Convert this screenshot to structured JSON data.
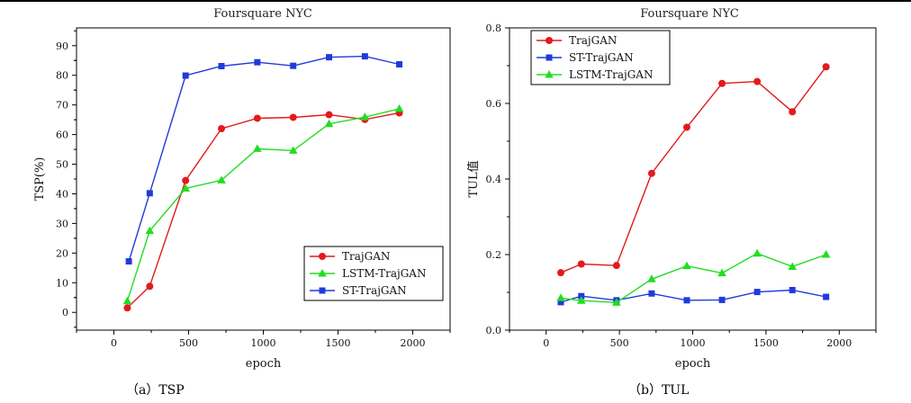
{
  "chart_data": [
    {
      "type": "line",
      "title": "Foursquare NYC",
      "caption": "（a）TSP",
      "xlabel": "epoch",
      "ylabel": "TSP(%)",
      "xlim": [
        -250,
        2250
      ],
      "ylim": [
        -6,
        96
      ],
      "xticks": [
        0,
        500,
        1000,
        1500,
        2000
      ],
      "yticks": [
        0,
        10,
        20,
        30,
        40,
        50,
        60,
        70,
        80,
        90
      ],
      "legend_position": "bottom-right",
      "series": [
        {
          "name": "TrajGAN",
          "color": "#e31a1c",
          "marker": "circle",
          "x": [
            90,
            240,
            480,
            720,
            960,
            1200,
            1440,
            1680,
            1910
          ],
          "y": [
            1.5,
            8.8,
            44.5,
            62,
            65.5,
            65.8,
            66.7,
            65.1,
            67.3
          ]
        },
        {
          "name": "LSTM-TrajGAN",
          "color": "#22dd22",
          "marker": "triangle",
          "x": [
            90,
            240,
            480,
            720,
            960,
            1200,
            1440,
            1680,
            1910
          ],
          "y": [
            3.8,
            27.5,
            41.8,
            44.6,
            55.2,
            54.6,
            63.6,
            65.9,
            68.7
          ]
        },
        {
          "name": "ST-TrajGAN",
          "color": "#1f3bdc",
          "marker": "square",
          "x": [
            100,
            240,
            480,
            720,
            960,
            1200,
            1440,
            1680,
            1910
          ],
          "y": [
            17.2,
            40.2,
            79.9,
            83.1,
            84.4,
            83.2,
            86.1,
            86.4,
            83.7
          ]
        }
      ]
    },
    {
      "type": "line",
      "title": "Foursquare NYC",
      "caption": "（b）TUL",
      "xlabel": "epoch",
      "ylabel": "TUL值",
      "xlim": [
        -250,
        2250
      ],
      "ylim": [
        0,
        0.8
      ],
      "xticks": [
        0,
        500,
        1000,
        1500,
        2000
      ],
      "yticks": [
        0.0,
        0.2,
        0.4,
        0.6,
        0.8
      ],
      "legend_position": "top-left",
      "series": [
        {
          "name": "TrajGAN",
          "color": "#e31a1c",
          "marker": "circle",
          "x": [
            100,
            240,
            480,
            720,
            960,
            1200,
            1440,
            1680,
            1910
          ],
          "y": [
            0.152,
            0.175,
            0.171,
            0.415,
            0.537,
            0.653,
            0.658,
            0.578,
            0.697
          ]
        },
        {
          "name": "ST-TrajGAN",
          "color": "#1f3bdc",
          "marker": "square",
          "x": [
            100,
            240,
            480,
            720,
            960,
            1200,
            1440,
            1680,
            1910
          ],
          "y": [
            0.074,
            0.09,
            0.079,
            0.097,
            0.079,
            0.08,
            0.101,
            0.106,
            0.088
          ]
        },
        {
          "name": "LSTM-TrajGAN",
          "color": "#22dd22",
          "marker": "triangle",
          "x": [
            100,
            240,
            480,
            720,
            960,
            1200,
            1440,
            1680,
            1910
          ],
          "y": [
            0.085,
            0.078,
            0.073,
            0.135,
            0.17,
            0.151,
            0.203,
            0.168,
            0.2
          ]
        }
      ]
    }
  ]
}
